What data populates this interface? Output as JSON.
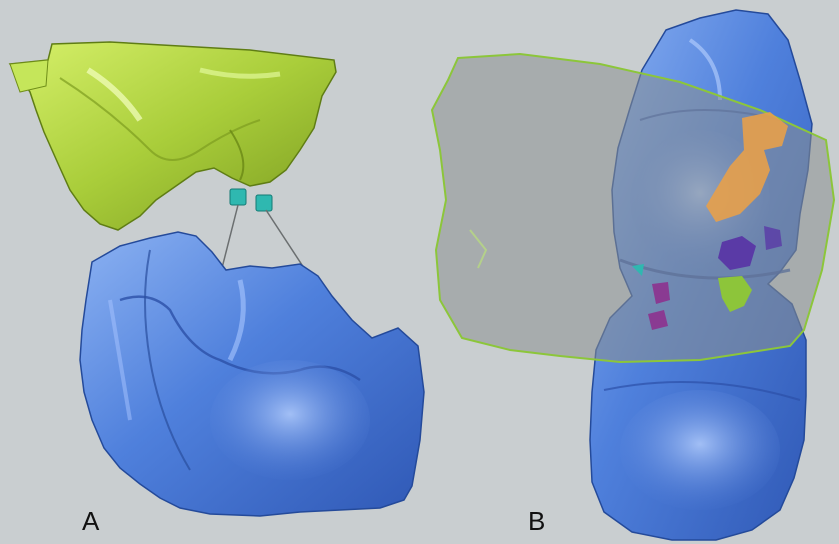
{
  "figure": {
    "panels": [
      {
        "label": "A"
      },
      {
        "label": "B"
      }
    ],
    "colors": {
      "background": "#c9ced0",
      "occlusal_model": "#a9cd3a",
      "tooth_model": "#4a78d6",
      "transparent_plane": "#8a8f8f",
      "contact_cyan": "#2fb8b0",
      "contact_orange": "#e7a04a",
      "contact_purple": "#5a3aa6",
      "contact_green": "#8dc53a",
      "contact_magenta": "#8a3a92"
    }
  }
}
